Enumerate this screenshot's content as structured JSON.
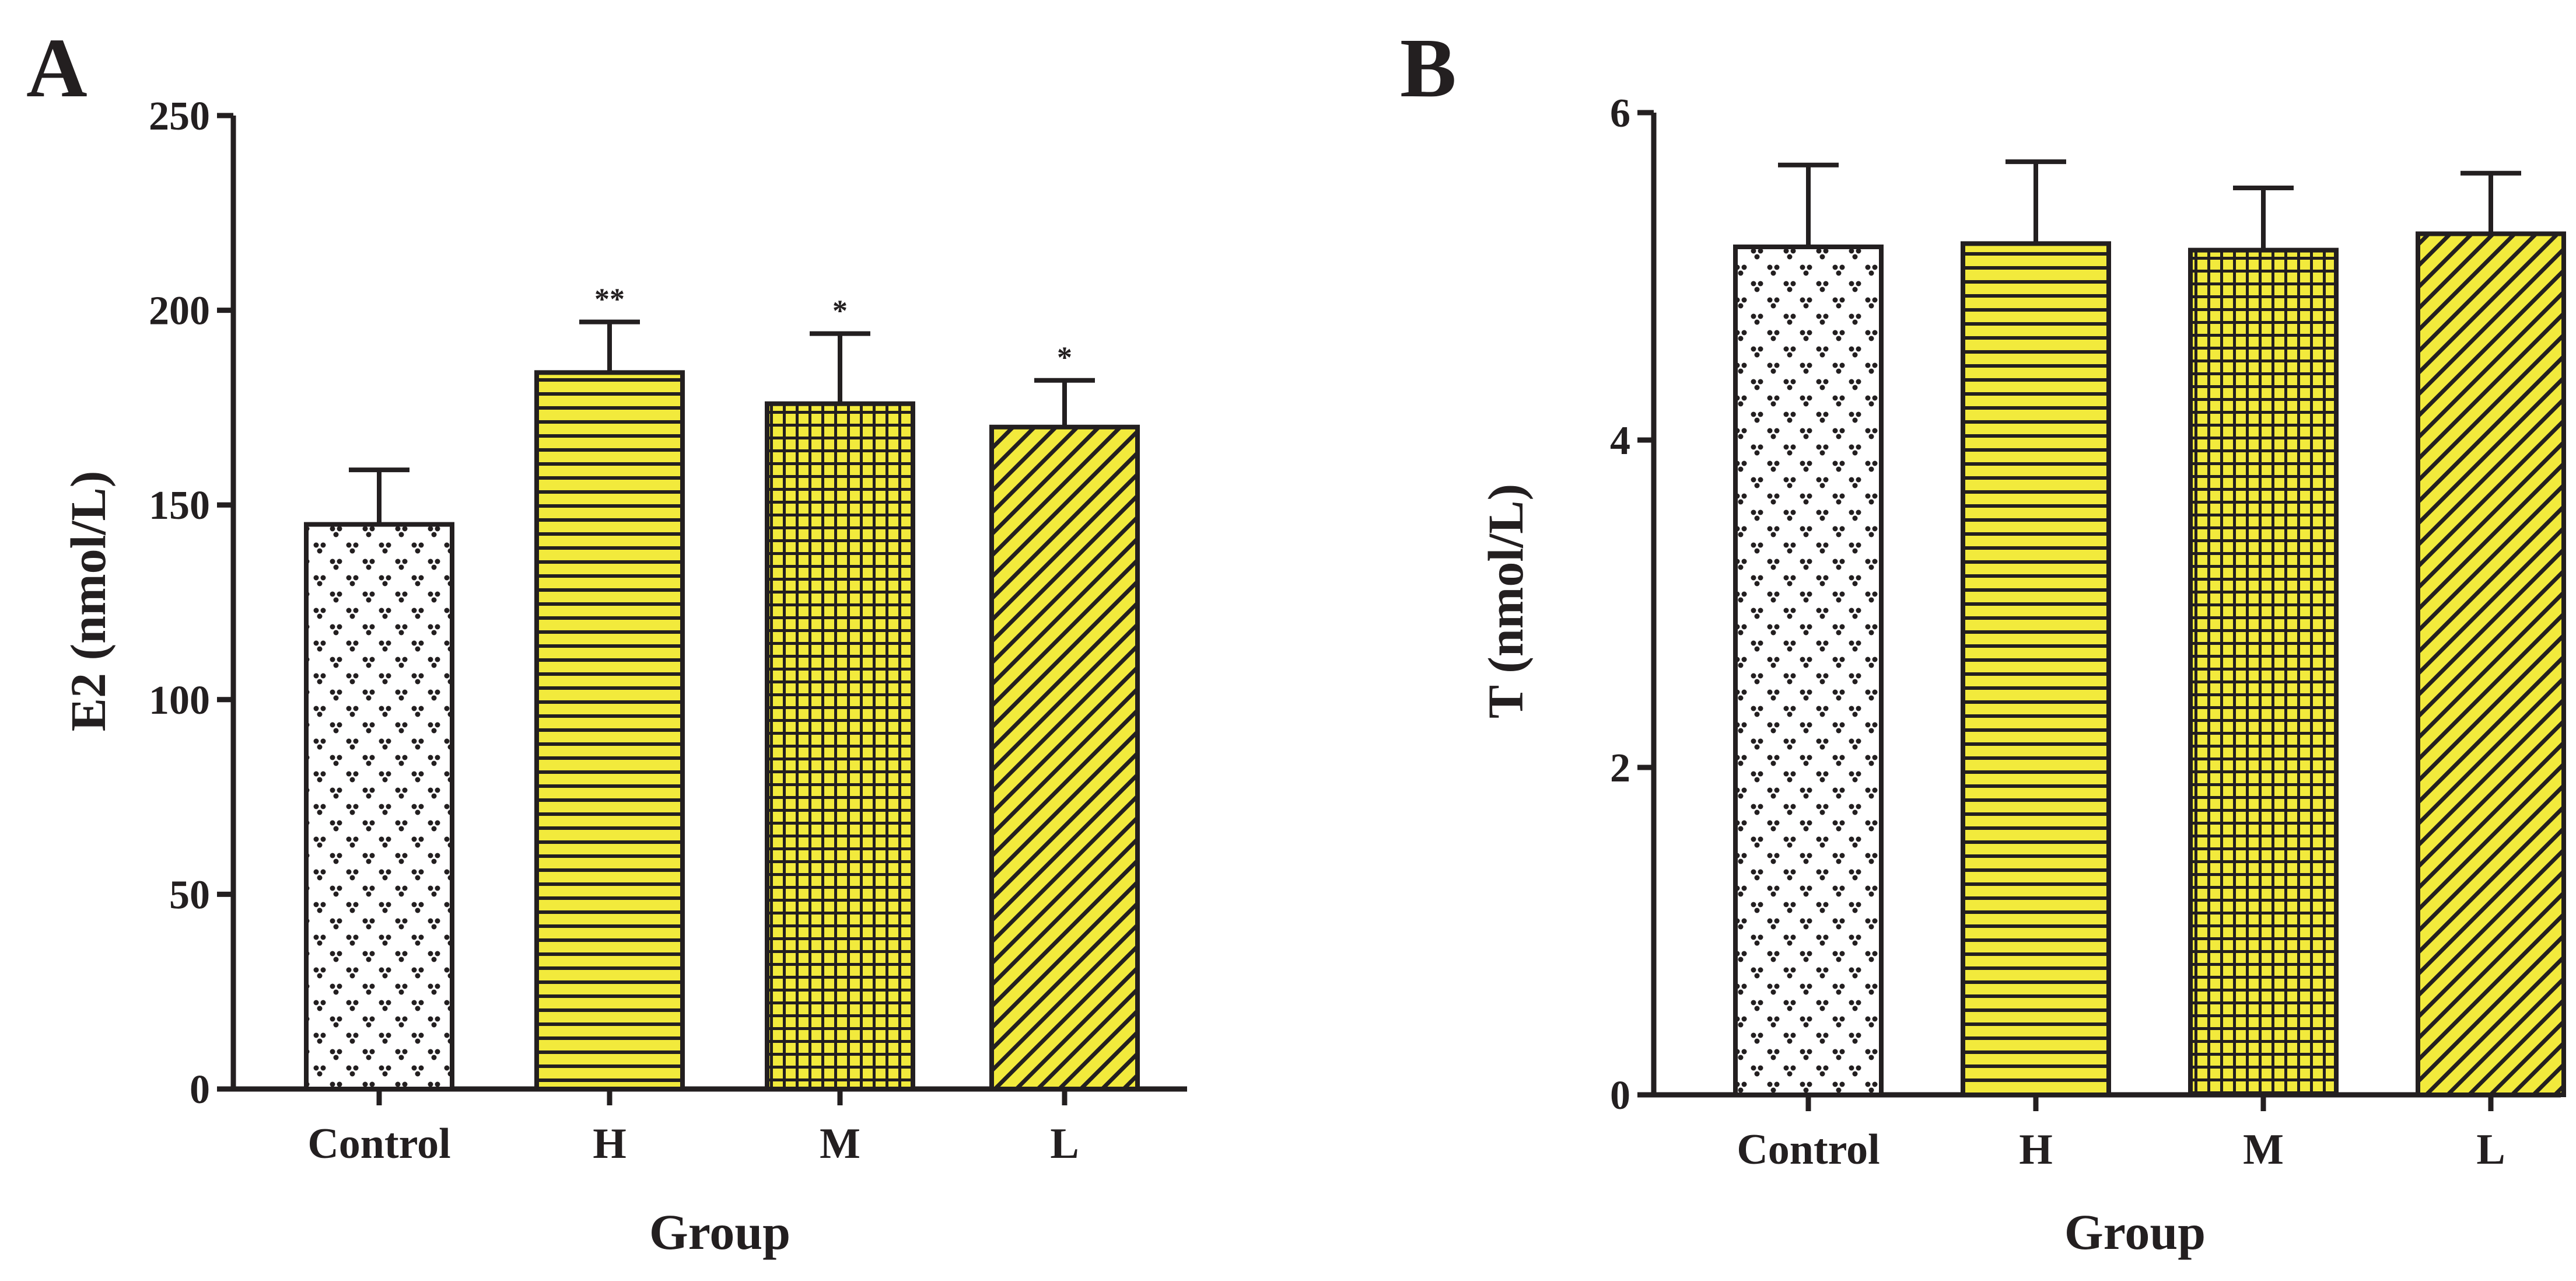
{
  "colors": {
    "bar_yellow": "#f2ea3c",
    "control_fill": "#ffffff",
    "ink": "#231f20"
  },
  "chart_data": [
    {
      "panel": "A",
      "type": "bar",
      "xlabel": "Group",
      "ylabel": "E2 (nmol/L)",
      "categories": [
        "Control",
        "H",
        "M",
        "L"
      ],
      "values": [
        145,
        184,
        176,
        170
      ],
      "errors": [
        14,
        13,
        18,
        12
      ],
      "significance": [
        "",
        "**",
        "*",
        "*"
      ],
      "patterns": [
        "dots",
        "hlines",
        "grid",
        "diagonal"
      ],
      "ylim": [
        0,
        250
      ],
      "yticks": [
        "0",
        "50",
        "100",
        "150",
        "200",
        "250"
      ]
    },
    {
      "panel": "B",
      "type": "bar",
      "xlabel": "Group",
      "ylabel": "T (nmol/L)",
      "categories": [
        "Control",
        "H",
        "M",
        "L"
      ],
      "values": [
        5.18,
        5.2,
        5.16,
        5.26
      ],
      "errors": [
        0.5,
        0.5,
        0.38,
        0.37
      ],
      "significance": [
        "",
        "",
        "",
        ""
      ],
      "patterns": [
        "dots",
        "hlines",
        "grid",
        "diagonal"
      ],
      "ylim": [
        0,
        6
      ],
      "yticks": [
        "0",
        "2",
        "4",
        "6"
      ]
    }
  ]
}
